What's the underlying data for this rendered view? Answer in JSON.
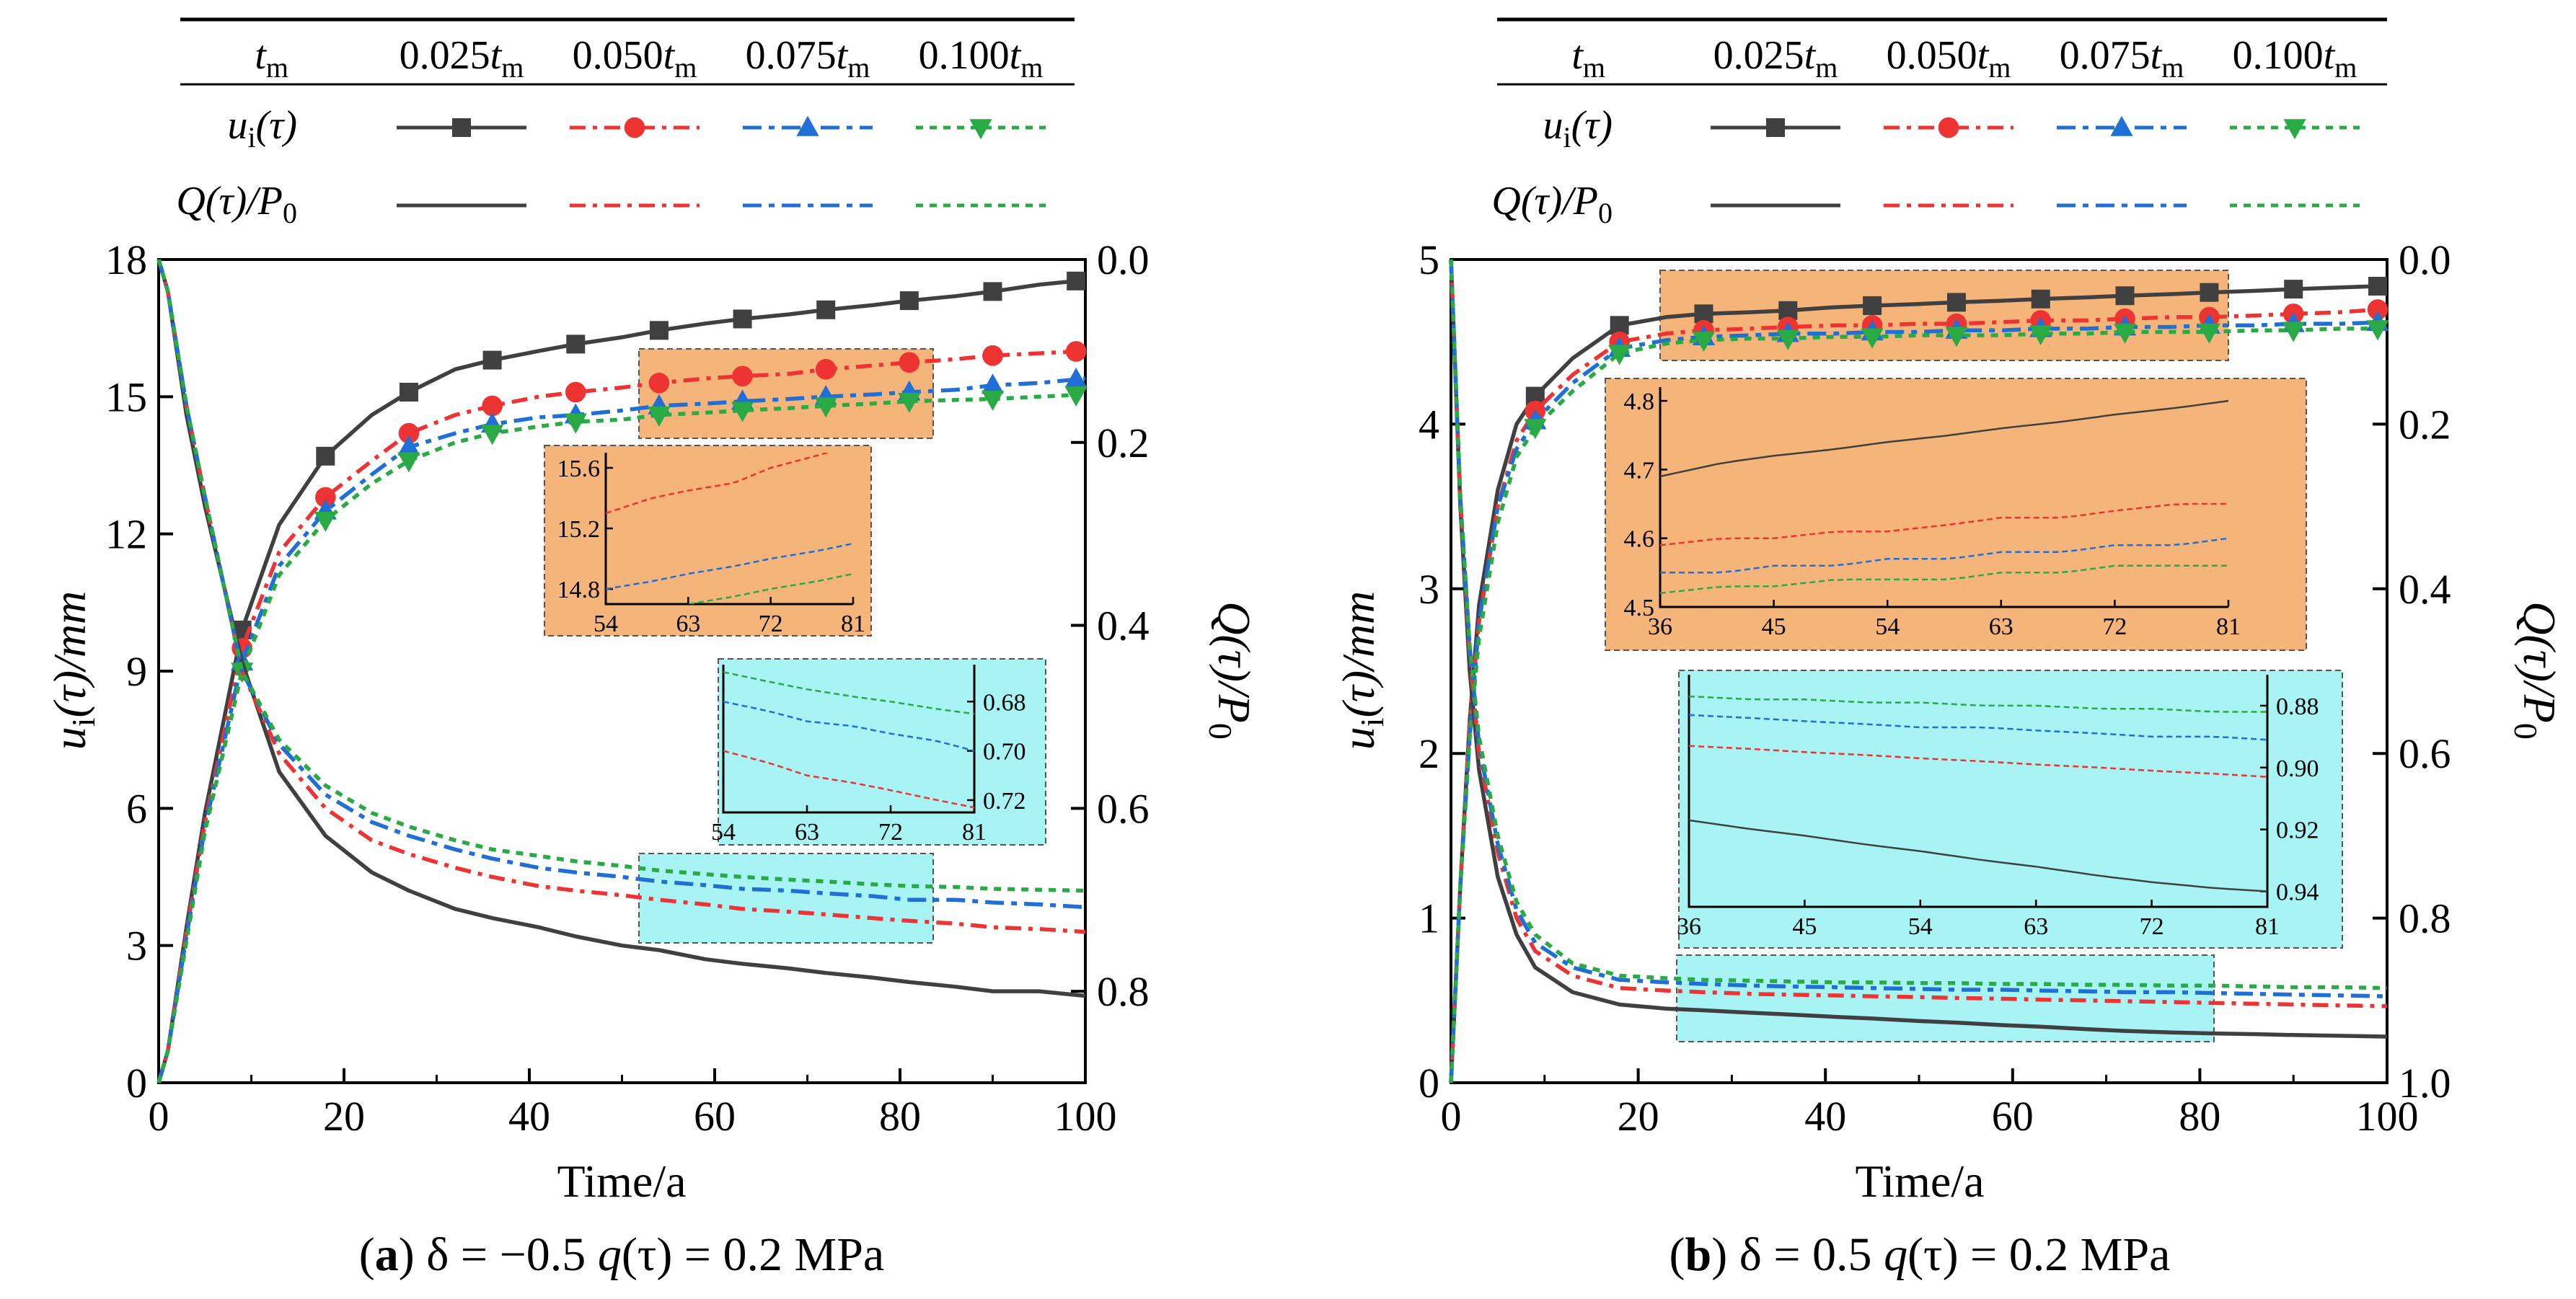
{
  "legend": {
    "header_label": "t",
    "header_sub": "m",
    "columns": [
      {
        "num": "0.025",
        "t": "t",
        "sub": "m"
      },
      {
        "num": "0.050",
        "t": "t",
        "sub": "m"
      },
      {
        "num": "0.075",
        "t": "t",
        "sub": "m"
      },
      {
        "num": "0.100",
        "t": "t",
        "sub": "m"
      }
    ],
    "row1": {
      "pre": "u",
      "sub": "i",
      "post": "(τ)"
    },
    "row2": {
      "pre": "Q",
      "mid": "(τ)/",
      "p": "P",
      "sub": "0"
    }
  },
  "colors": {
    "series": [
      "#404040",
      "#ee3333",
      "#1f6fd6",
      "#2aaa44"
    ],
    "zoom_orange": "#f5b57a",
    "zoom_cyan": "#a8f3f4",
    "axis": "#000000"
  },
  "panels": [
    {
      "id": "a",
      "caption": {
        "letter": "a",
        "delta": "δ",
        "rest1": " = −0.5 ",
        "q": "q",
        "rest2": "(τ) = 0.2 MPa"
      },
      "xlabel": "Time/a",
      "ylabel": {
        "pre": "u",
        "sub": "i",
        "post": "(τ)/mm"
      },
      "y2label": {
        "pre": "Q",
        "mid": "(τ)/",
        "p": "P",
        "sub": "0"
      },
      "xticks": [
        "0",
        "20",
        "40",
        "60",
        "80",
        "100"
      ],
      "yticks": [
        "0",
        "3",
        "6",
        "9",
        "12",
        "15",
        "18"
      ],
      "y2ticks": [
        "0.0",
        "0.2",
        "0.4",
        "0.6",
        "0.8"
      ],
      "inset_top_xticks": [
        "54",
        "63",
        "72",
        "81"
      ],
      "inset_top_yticks": [
        "14.8",
        "15.2",
        "15.6"
      ],
      "inset_bot_xticks": [
        "54",
        "63",
        "72",
        "81"
      ],
      "inset_bot_yticks": [
        "0.68",
        "0.70",
        "0.72"
      ]
    },
    {
      "id": "b",
      "caption": {
        "letter": "b",
        "delta": "δ",
        "rest1": " = 0.5 ",
        "q": "q",
        "rest2": "(τ) = 0.2 MPa"
      },
      "xlabel": "Time/a",
      "ylabel": {
        "pre": "u",
        "sub": "i",
        "post": "(τ)/mm"
      },
      "y2label": {
        "pre": "Q",
        "mid": "(τ)/",
        "p": "P",
        "sub": "0"
      },
      "xticks": [
        "0",
        "20",
        "40",
        "60",
        "80",
        "100"
      ],
      "yticks": [
        "0",
        "1",
        "2",
        "3",
        "4",
        "5"
      ],
      "y2ticks": [
        "0.0",
        "0.2",
        "0.4",
        "0.6",
        "0.8",
        "1.0"
      ],
      "inset_top_xticks": [
        "36",
        "45",
        "54",
        "63",
        "72",
        "81"
      ],
      "inset_top_yticks": [
        "4.5",
        "4.6",
        "4.7",
        "4.8"
      ],
      "inset_bot_xticks": [
        "36",
        "45",
        "54",
        "63",
        "72",
        "81"
      ],
      "inset_bot_yticks": [
        "0.88",
        "0.90",
        "0.92",
        "0.94"
      ]
    }
  ],
  "chart_data": [
    {
      "type": "line",
      "title": "(a) δ = −0.5 q(τ) = 0.2 MPa",
      "xlabel": "Time/a",
      "ylabel": "ui(τ)/mm",
      "y2label": "Q(τ)/P0",
      "xlim": [
        0,
        100
      ],
      "ylim": [
        0,
        18
      ],
      "y2lim": [
        0,
        0.9
      ],
      "y2_inverted": true,
      "x": [
        0,
        1,
        3,
        5,
        9,
        13,
        18,
        23,
        27,
        32,
        36,
        41,
        45,
        50,
        54,
        59,
        63,
        68,
        72,
        77,
        81,
        86,
        90,
        95,
        100
      ],
      "series": [
        {
          "name": "ui(τ) 0.025tm",
          "axis": "left",
          "values": [
            0.0,
            0.7,
            3.4,
            5.9,
            9.9,
            12.2,
            13.7,
            14.6,
            15.1,
            15.6,
            15.8,
            16.0,
            16.15,
            16.3,
            16.45,
            16.6,
            16.7,
            16.8,
            16.9,
            17.0,
            17.1,
            17.2,
            17.3,
            17.45,
            17.55
          ]
        },
        {
          "name": "ui(τ) 0.050tm",
          "axis": "left",
          "values": [
            0.0,
            0.7,
            3.3,
            5.7,
            9.5,
            11.6,
            12.8,
            13.6,
            14.2,
            14.6,
            14.8,
            15.0,
            15.1,
            15.2,
            15.3,
            15.4,
            15.45,
            15.5,
            15.6,
            15.68,
            15.75,
            15.82,
            15.9,
            15.95,
            16.0
          ]
        },
        {
          "name": "ui(τ) 0.075tm",
          "axis": "left",
          "values": [
            0.0,
            0.7,
            3.2,
            5.6,
            9.2,
            11.3,
            12.5,
            13.3,
            13.9,
            14.2,
            14.4,
            14.55,
            14.6,
            14.7,
            14.8,
            14.85,
            14.9,
            14.95,
            15.0,
            15.05,
            15.1,
            15.15,
            15.25,
            15.3,
            15.4
          ]
        },
        {
          "name": "ui(τ) 0.100tm",
          "axis": "left",
          "values": [
            0.0,
            0.7,
            3.1,
            5.5,
            9.0,
            11.1,
            12.3,
            13.1,
            13.6,
            14.0,
            14.2,
            14.35,
            14.45,
            14.5,
            14.6,
            14.65,
            14.7,
            14.75,
            14.8,
            14.85,
            14.9,
            14.93,
            14.95,
            15.0,
            15.05
          ]
        },
        {
          "name": "Q(τ)/P0 0.025tm",
          "axis": "right",
          "values": [
            0.0,
            0.035,
            0.17,
            0.27,
            0.44,
            0.56,
            0.63,
            0.67,
            0.69,
            0.71,
            0.72,
            0.73,
            0.74,
            0.75,
            0.755,
            0.765,
            0.77,
            0.775,
            0.78,
            0.785,
            0.79,
            0.795,
            0.8,
            0.8,
            0.805
          ]
        },
        {
          "name": "Q(τ)/P0 0.050tm",
          "axis": "right",
          "values": [
            0.0,
            0.035,
            0.16,
            0.26,
            0.45,
            0.54,
            0.6,
            0.635,
            0.65,
            0.665,
            0.675,
            0.685,
            0.69,
            0.695,
            0.7,
            0.705,
            0.71,
            0.713,
            0.716,
            0.72,
            0.723,
            0.726,
            0.73,
            0.732,
            0.735
          ]
        },
        {
          "name": "Q(τ)/P0 0.075tm",
          "axis": "right",
          "values": [
            0.0,
            0.035,
            0.16,
            0.26,
            0.45,
            0.53,
            0.585,
            0.615,
            0.63,
            0.645,
            0.655,
            0.665,
            0.67,
            0.675,
            0.68,
            0.684,
            0.688,
            0.69,
            0.693,
            0.696,
            0.7,
            0.7,
            0.703,
            0.705,
            0.708
          ]
        },
        {
          "name": "Q(τ)/P0 0.100tm",
          "axis": "right",
          "values": [
            0.0,
            0.035,
            0.16,
            0.26,
            0.45,
            0.525,
            0.575,
            0.605,
            0.62,
            0.635,
            0.645,
            0.652,
            0.658,
            0.663,
            0.668,
            0.672,
            0.675,
            0.678,
            0.68,
            0.683,
            0.685,
            0.686,
            0.688,
            0.689,
            0.69
          ]
        }
      ]
    },
    {
      "type": "line",
      "title": "(b) δ = 0.5 q(τ) = 0.2 MPa",
      "xlabel": "Time/a",
      "ylabel": "ui(τ)/mm",
      "y2label": "Q(τ)/P0",
      "xlim": [
        0,
        100
      ],
      "ylim": [
        0,
        5
      ],
      "y2lim": [
        0,
        1.0
      ],
      "y2_inverted": true,
      "x": [
        0,
        1,
        2,
        3,
        5,
        7,
        9,
        13,
        18,
        23,
        27,
        32,
        36,
        41,
        45,
        50,
        54,
        59,
        63,
        68,
        72,
        77,
        81,
        86,
        90,
        95,
        100
      ],
      "series": [
        {
          "name": "ui(τ) 0.025tm",
          "axis": "left",
          "values": [
            0.0,
            1.2,
            2.2,
            2.9,
            3.6,
            4.0,
            4.17,
            4.4,
            4.6,
            4.65,
            4.67,
            4.68,
            4.69,
            4.71,
            4.72,
            4.73,
            4.74,
            4.75,
            4.76,
            4.77,
            4.78,
            4.79,
            4.8,
            4.81,
            4.82,
            4.83,
            4.84
          ]
        },
        {
          "name": "ui(τ) 0.050tm",
          "axis": "left",
          "values": [
            0.0,
            1.2,
            2.2,
            2.8,
            3.5,
            3.9,
            4.08,
            4.3,
            4.5,
            4.55,
            4.57,
            4.58,
            4.59,
            4.6,
            4.6,
            4.61,
            4.61,
            4.62,
            4.63,
            4.63,
            4.64,
            4.65,
            4.65,
            4.66,
            4.67,
            4.68,
            4.7
          ]
        },
        {
          "name": "ui(τ) 0.075tm",
          "axis": "left",
          "values": [
            0.0,
            1.2,
            2.1,
            2.8,
            3.5,
            3.85,
            4.02,
            4.25,
            4.46,
            4.51,
            4.53,
            4.54,
            4.55,
            4.55,
            4.56,
            4.56,
            4.57,
            4.57,
            4.58,
            4.58,
            4.59,
            4.59,
            4.6,
            4.6,
            4.61,
            4.61,
            4.62
          ]
        },
        {
          "name": "ui(τ) 0.100tm",
          "axis": "left",
          "values": [
            0.0,
            1.2,
            2.1,
            2.7,
            3.4,
            3.8,
            3.98,
            4.2,
            4.43,
            4.49,
            4.51,
            4.52,
            4.52,
            4.53,
            4.53,
            4.54,
            4.54,
            4.54,
            4.55,
            4.55,
            4.56,
            4.56,
            4.56,
            4.57,
            4.57,
            4.58,
            4.58
          ]
        },
        {
          "name": "Q(τ)/P0 0.025tm",
          "axis": "right",
          "values": [
            0.0,
            0.3,
            0.5,
            0.62,
            0.75,
            0.82,
            0.86,
            0.89,
            0.905,
            0.91,
            0.912,
            0.915,
            0.917,
            0.92,
            0.922,
            0.925,
            0.927,
            0.93,
            0.932,
            0.935,
            0.937,
            0.939,
            0.94,
            0.941,
            0.942,
            0.943,
            0.944
          ]
        },
        {
          "name": "Q(τ)/P0 0.050tm",
          "axis": "right",
          "values": [
            0.0,
            0.29,
            0.48,
            0.6,
            0.72,
            0.8,
            0.84,
            0.87,
            0.885,
            0.888,
            0.89,
            0.892,
            0.893,
            0.894,
            0.895,
            0.896,
            0.897,
            0.898,
            0.899,
            0.9,
            0.901,
            0.902,
            0.903,
            0.904,
            0.905,
            0.906,
            0.907
          ]
        },
        {
          "name": "Q(τ)/P0 0.075tm",
          "axis": "right",
          "values": [
            0.0,
            0.29,
            0.47,
            0.59,
            0.71,
            0.79,
            0.83,
            0.86,
            0.875,
            0.878,
            0.88,
            0.882,
            0.883,
            0.884,
            0.885,
            0.886,
            0.887,
            0.887,
            0.888,
            0.889,
            0.89,
            0.89,
            0.891,
            0.892,
            0.893,
            0.894,
            0.895
          ]
        },
        {
          "name": "Q(τ)/P0 0.100tm",
          "axis": "right",
          "values": [
            0.0,
            0.29,
            0.47,
            0.58,
            0.7,
            0.78,
            0.82,
            0.855,
            0.87,
            0.873,
            0.875,
            0.876,
            0.877,
            0.878,
            0.878,
            0.879,
            0.879,
            0.88,
            0.88,
            0.881,
            0.881,
            0.882,
            0.882,
            0.883,
            0.884,
            0.884,
            0.885
          ]
        }
      ]
    }
  ]
}
